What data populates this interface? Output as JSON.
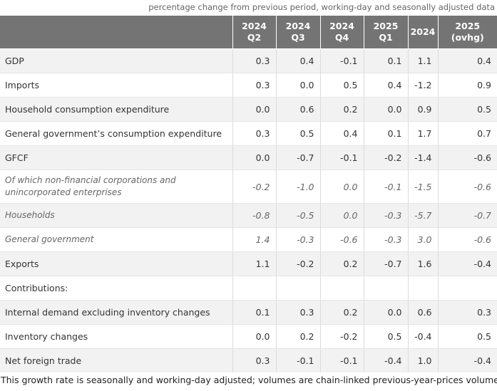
{
  "subtitle": "percentage change from previous period, working-day and seasonally adjusted data",
  "columns": [
    {
      "line1": "2024",
      "line2": "Q2"
    },
    {
      "line1": "2024",
      "line2": "Q3"
    },
    {
      "line1": "2024",
      "line2": "Q4"
    },
    {
      "line1": "2025",
      "line2": "Q1"
    },
    {
      "line1": "2024",
      "line2": ""
    },
    {
      "line1": "2025",
      "line2": "(ovhg)"
    }
  ],
  "rows": [
    {
      "label": "GDP",
      "values": [
        "0.3",
        "0.4",
        "-0.1",
        "0.1",
        "1.1",
        "0.4"
      ]
    },
    {
      "label": "Imports",
      "values": [
        "0.3",
        "0.0",
        "0.5",
        "0.4",
        "-1.2",
        "0.9"
      ]
    },
    {
      "label": "Household consumption expenditure",
      "values": [
        "0.0",
        "0.6",
        "0.2",
        "0.0",
        "0.9",
        "0.5"
      ]
    },
    {
      "label": "General government’s consumption expenditure",
      "values": [
        "0.3",
        "0.5",
        "0.4",
        "0.1",
        "1.7",
        "0.7"
      ]
    },
    {
      "label": "GFCF",
      "values": [
        "0.0",
        "-0.7",
        "-0.1",
        "-0.2",
        "-1.4",
        "-0.6"
      ]
    },
    {
      "label": "Of which non-financial corporations and unincorporated enterprises",
      "values": [
        "-0.2",
        "-1.0",
        "0.0",
        "-0.1",
        "-1.5",
        "-0.6"
      ]
    },
    {
      "label": "Households",
      "values": [
        "-0.8",
        "-0.5",
        "0.0",
        "-0.3",
        "-5.7",
        "-0.7"
      ]
    },
    {
      "label": "General government",
      "values": [
        "1.4",
        "-0.3",
        "-0.6",
        "-0.3",
        "3.0",
        "-0.6"
      ]
    },
    {
      "label": "Exports",
      "values": [
        "1.1",
        "-0.2",
        "0.2",
        "-0.7",
        "1.6",
        "-0.4"
      ]
    },
    {
      "label": "Contributions:",
      "values": [
        "",
        "",
        "",
        "",
        "",
        ""
      ]
    },
    {
      "label": "Internal demand excluding inventory changes",
      "values": [
        "0.1",
        "0.3",
        "0.2",
        "0.0",
        "0.6",
        "0.3"
      ]
    },
    {
      "label": "Inventory changes",
      "values": [
        "0.0",
        "0.2",
        "-0.2",
        "0.5",
        "-0.4",
        "0.5"
      ]
    },
    {
      "label": "Net foreign trade",
      "values": [
        "0.3",
        "-0.1",
        "-0.1",
        "-0.4",
        "1.0",
        "-0.4"
      ]
    }
  ],
  "footnote": "This growth rate is seasonally and working-day adjusted; volumes are chain-linked previous-year-prices volumes."
}
